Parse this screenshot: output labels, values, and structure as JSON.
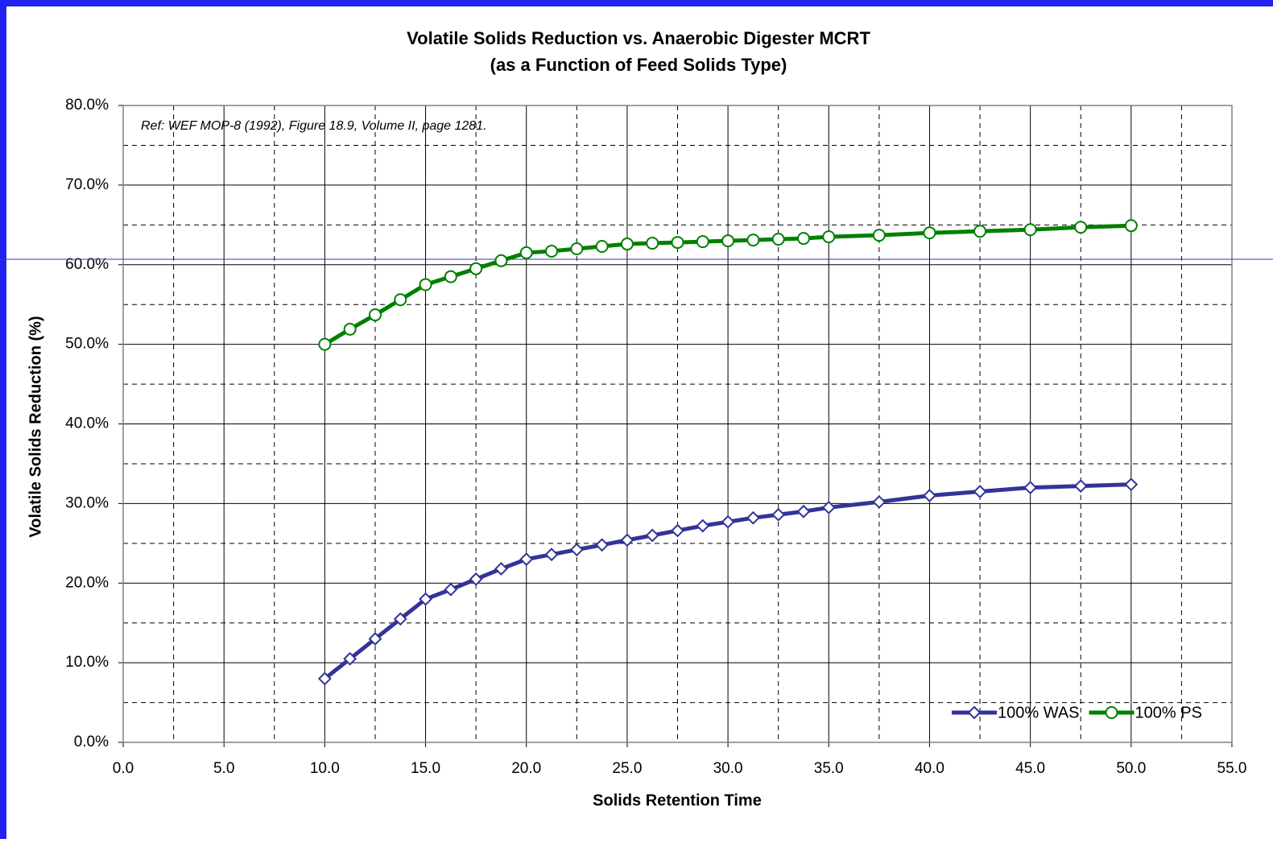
{
  "chart_data": {
    "type": "line",
    "title": "Volatile Solids Reduction vs. Anaerobic Digester MCRT",
    "subtitle": "(as a Function of Feed Solids Type)",
    "annotation": "Ref: WEF MOP-8 (1992), Figure 18.9, Volume II, page 1281.",
    "x_label": "Solids Retention Time",
    "y_label": "Volatile Solids Reduction (%)",
    "x": [
      10,
      11.25,
      12.5,
      13.75,
      15,
      16.25,
      17.5,
      18.75,
      20,
      21.25,
      22.5,
      23.75,
      25,
      26.25,
      27.5,
      28.75,
      30,
      31.25,
      32.5,
      33.75,
      35,
      37.5,
      40,
      42.5,
      45,
      47.5,
      50
    ],
    "series": [
      {
        "name": "100% WAS",
        "color": "#333399",
        "marker": "diamond",
        "values": [
          8,
          10.5,
          13,
          15.5,
          18,
          19.2,
          20.5,
          21.8,
          23,
          23.6,
          24.2,
          24.8,
          25.4,
          26,
          26.6,
          27.2,
          27.7,
          28.2,
          28.6,
          29,
          29.5,
          30.2,
          31,
          31.5,
          32,
          32.2,
          32.4
        ]
      },
      {
        "name": "100% PS",
        "color": "#008000",
        "marker": "circle",
        "values": [
          50,
          51.9,
          53.7,
          55.6,
          57.5,
          58.5,
          59.5,
          60.5,
          61.5,
          61.7,
          62,
          62.3,
          62.6,
          62.7,
          62.8,
          62.9,
          63,
          63.1,
          63.2,
          63.3,
          63.5,
          63.7,
          64,
          64.2,
          64.4,
          64.7,
          64.9
        ]
      }
    ],
    "xlim": [
      0,
      55
    ],
    "ylim": [
      0,
      80
    ],
    "xticks": [
      {
        "value": 0,
        "label": "0.0"
      },
      {
        "value": 5,
        "label": "5.0"
      },
      {
        "value": 10,
        "label": "10.0"
      },
      {
        "value": 15,
        "label": "15.0"
      },
      {
        "value": 20,
        "label": "20.0"
      },
      {
        "value": 25,
        "label": "25.0"
      },
      {
        "value": 30,
        "label": "30.0"
      },
      {
        "value": 35,
        "label": "35.0"
      },
      {
        "value": 40,
        "label": "40.0"
      },
      {
        "value": 45,
        "label": "45.0"
      },
      {
        "value": 50,
        "label": "50.0"
      },
      {
        "value": 55,
        "label": "55.0"
      }
    ],
    "yticks": [
      {
        "value": 0,
        "label": "0.0%"
      },
      {
        "value": 10,
        "label": "10.0%"
      },
      {
        "value": 20,
        "label": "20.0%"
      },
      {
        "value": 30,
        "label": "30.0%"
      },
      {
        "value": 40,
        "label": "40.0%"
      },
      {
        "value": 50,
        "label": "50.0%"
      },
      {
        "value": 60,
        "label": "60.0%"
      },
      {
        "value": 70,
        "label": "70.0%"
      },
      {
        "value": 80,
        "label": "80.0%"
      }
    ],
    "minor_xticks": [
      2.5,
      7.5,
      12.5,
      17.5,
      22.5,
      27.5,
      32.5,
      37.5,
      42.5,
      47.5,
      52.5
    ],
    "minor_yticks": [
      5,
      15,
      25,
      35,
      45,
      55,
      65,
      75
    ],
    "grid": true,
    "legend": "lower right"
  }
}
